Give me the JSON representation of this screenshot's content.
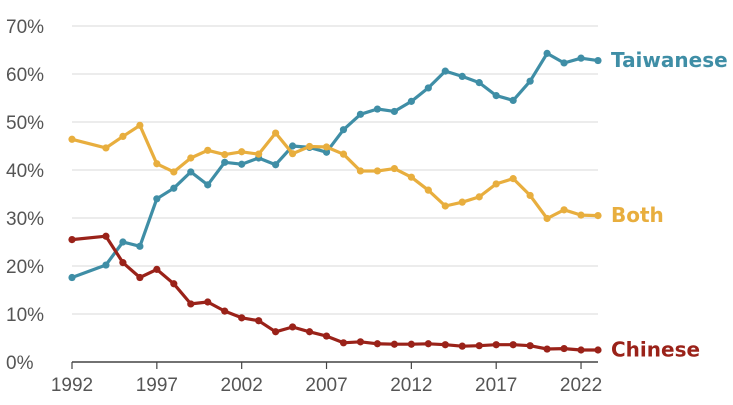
{
  "chart_data": {
    "type": "line",
    "title": "",
    "xlabel": "",
    "ylabel": "",
    "xlim": [
      1992,
      2023
    ],
    "ylim": [
      0,
      70
    ],
    "grid": true,
    "y_ticks": [
      {
        "value": 0,
        "label": "0%"
      },
      {
        "value": 10,
        "label": "10%"
      },
      {
        "value": 20,
        "label": "20%"
      },
      {
        "value": 30,
        "label": "30%"
      },
      {
        "value": 40,
        "label": "40%"
      },
      {
        "value": 50,
        "label": "50%"
      },
      {
        "value": 60,
        "label": "60%"
      },
      {
        "value": 70,
        "label": "70%"
      }
    ],
    "x_ticks": [
      {
        "value": 1992,
        "label": "1992"
      },
      {
        "value": 1997,
        "label": "1997"
      },
      {
        "value": 2002,
        "label": "2002"
      },
      {
        "value": 2007,
        "label": "2007"
      },
      {
        "value": 2012,
        "label": "2012"
      },
      {
        "value": 2017,
        "label": "2017"
      },
      {
        "value": 2022,
        "label": "2022"
      }
    ],
    "x": [
      1992,
      1994,
      1995,
      1996,
      1997,
      1998,
      1999,
      2000,
      2001,
      2002,
      2003,
      2004,
      2005,
      2006,
      2007,
      2008,
      2009,
      2010,
      2011,
      2012,
      2013,
      2014,
      2015,
      2016,
      2017,
      2018,
      2019,
      2020,
      2021,
      2022,
      2023
    ],
    "series": [
      {
        "name": "Taiwanese",
        "color": "#3f8ea6",
        "values": [
          17.6,
          20.2,
          25.0,
          24.1,
          34.0,
          36.2,
          39.6,
          36.9,
          41.6,
          41.2,
          42.5,
          41.1,
          45.0,
          44.7,
          43.7,
          48.4,
          51.6,
          52.7,
          52.2,
          54.3,
          57.1,
          60.6,
          59.5,
          58.2,
          55.5,
          54.5,
          58.5,
          64.3,
          62.3,
          63.3,
          62.8
        ]
      },
      {
        "name": "Both",
        "color": "#e8ae3e",
        "values": [
          46.4,
          44.6,
          47.0,
          49.3,
          41.3,
          39.6,
          42.5,
          44.1,
          43.2,
          43.8,
          43.3,
          47.7,
          43.4,
          44.9,
          44.8,
          43.3,
          39.8,
          39.8,
          40.3,
          38.5,
          35.8,
          32.5,
          33.3,
          34.4,
          37.1,
          38.2,
          34.7,
          29.9,
          31.7,
          30.6,
          30.5
        ]
      },
      {
        "name": "Chinese",
        "color": "#9a2219",
        "values": [
          25.5,
          26.2,
          20.7,
          17.6,
          19.3,
          16.3,
          12.1,
          12.5,
          10.6,
          9.2,
          8.6,
          6.3,
          7.3,
          6.3,
          5.4,
          4.0,
          4.2,
          3.8,
          3.7,
          3.7,
          3.8,
          3.6,
          3.3,
          3.4,
          3.6,
          3.6,
          3.4,
          2.7,
          2.8,
          2.5,
          2.5
        ]
      }
    ]
  }
}
